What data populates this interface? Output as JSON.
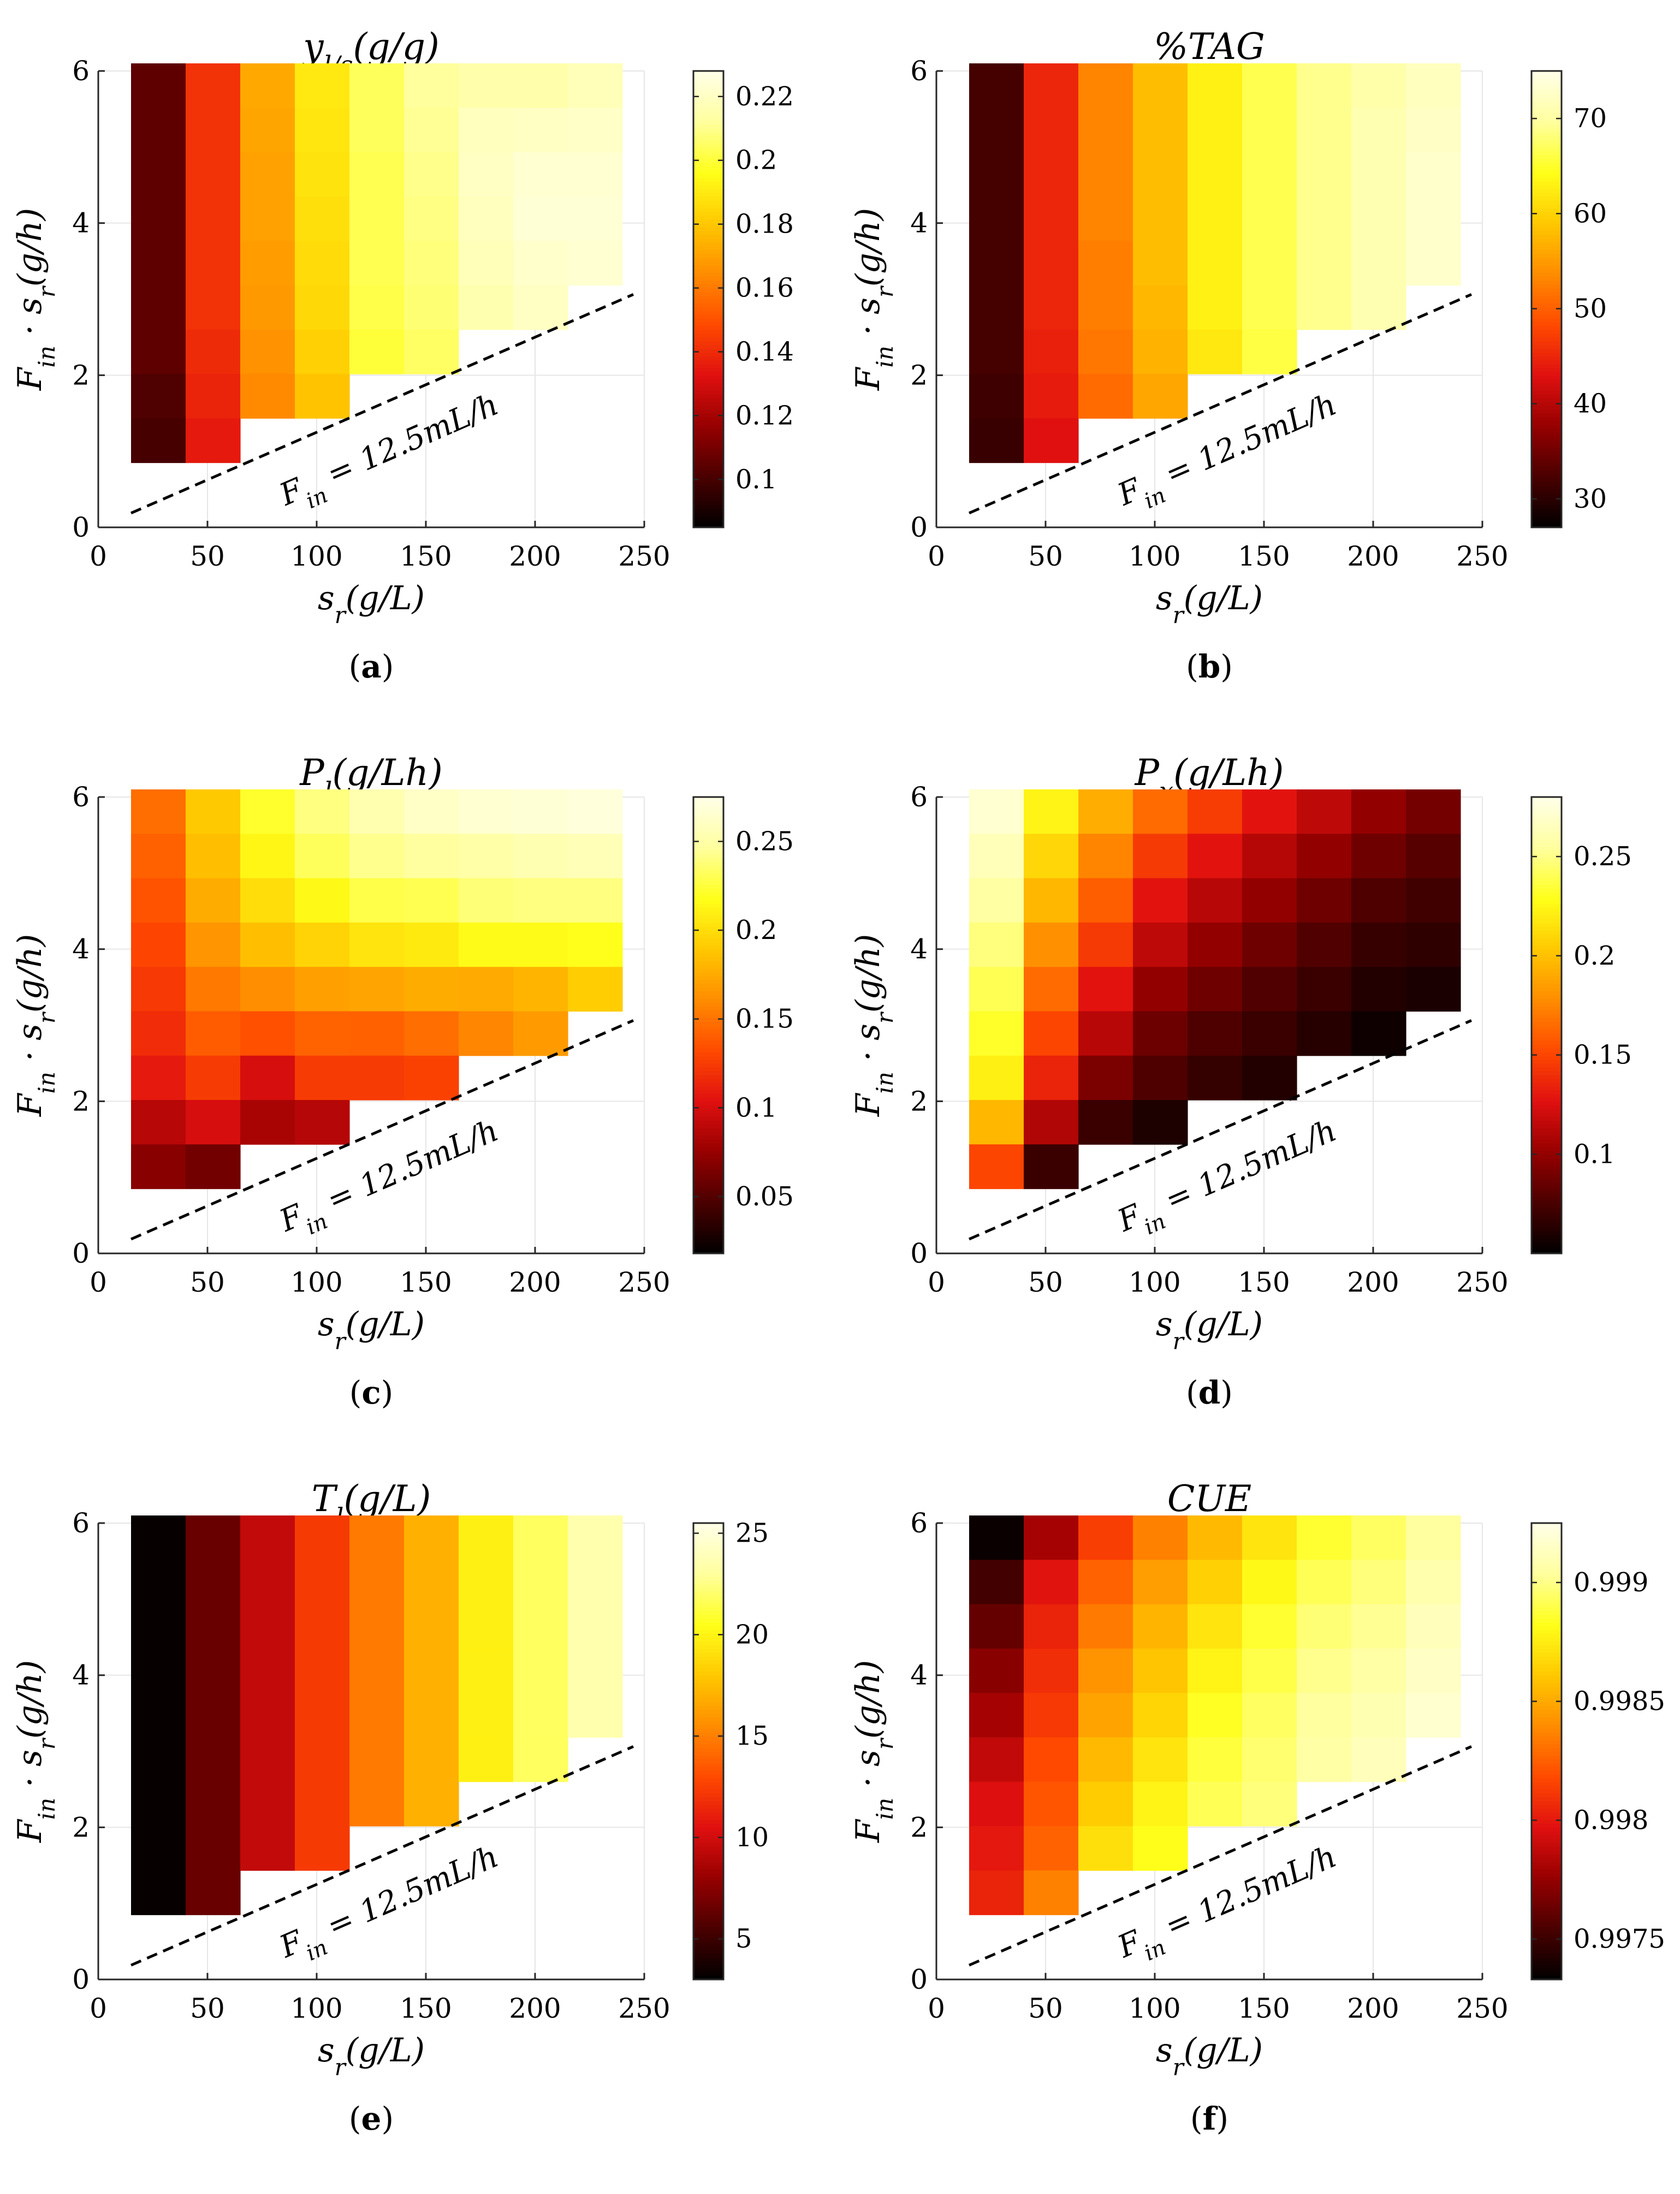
{
  "colors": {
    "colormap": [
      "#000000",
      "#4a0000",
      "#960000",
      "#e01010",
      "#ff4a00",
      "#ff8c00",
      "#ffc800",
      "#ffff1a",
      "#ffff9e",
      "#ffffe8"
    ],
    "dashed_line": "#000000",
    "grid": "#e6e6e6"
  },
  "chart_data": [
    {
      "type": "heatmap",
      "panel": "a",
      "caption": "(a)",
      "caption_letter": "a",
      "title": "y_{l/s}(g/g)",
      "xlabel": "s_r(g/L)",
      "ylabel": "F_in · s_r(g/h)",
      "xlim": [
        0,
        250
      ],
      "ylim": [
        0,
        6
      ],
      "xticks": [
        "0",
        "50",
        "100",
        "150",
        "200",
        "250"
      ],
      "yticks": [
        "0",
        "2",
        "4",
        "6"
      ],
      "annotation": "F_in = 12.5mL/h",
      "colorbar": {
        "min": 0.085,
        "max": 0.228,
        "ticks": [
          0.1,
          0.12,
          0.14,
          0.16,
          0.18,
          0.2,
          0.22
        ],
        "tick_labels": [
          "0.1",
          "0.12",
          "0.14",
          "0.16",
          "0.18",
          "0.2",
          "0.22"
        ]
      },
      "columns": [
        {
          "s_r": 27.5,
          "rows_from_top": [
            0.105,
            0.105,
            0.105,
            0.105,
            0.105,
            0.105,
            0.105,
            0.102,
            0.1
          ]
        },
        {
          "s_r": 52.5,
          "rows_from_top": [
            0.142,
            0.142,
            0.142,
            0.142,
            0.142,
            0.142,
            0.14,
            0.138,
            0.135
          ]
        },
        {
          "s_r": 77.5,
          "rows_from_top": [
            0.172,
            0.171,
            0.17,
            0.17,
            0.169,
            0.168,
            0.166,
            0.164
          ]
        },
        {
          "s_r": 102.5,
          "rows_from_top": [
            0.19,
            0.189,
            0.188,
            0.187,
            0.186,
            0.185,
            0.183,
            0.179
          ]
        },
        {
          "s_r": 127.5,
          "rows_from_top": [
            0.204,
            0.204,
            0.203,
            0.203,
            0.203,
            0.202,
            0.2
          ]
        },
        {
          "s_r": 152.5,
          "rows_from_top": [
            0.212,
            0.211,
            0.21,
            0.209,
            0.208,
            0.207,
            0.205
          ]
        },
        {
          "s_r": 177.5,
          "rows_from_top": [
            0.215,
            0.219,
            0.22,
            0.219,
            0.218,
            0.216
          ]
        },
        {
          "s_r": 202.5,
          "rows_from_top": [
            0.215,
            0.22,
            0.223,
            0.224,
            0.222,
            0.22
          ]
        },
        {
          "s_r": 227.5,
          "rows_from_top": [
            0.218,
            0.221,
            0.223,
            0.224,
            0.223
          ]
        }
      ]
    },
    {
      "type": "heatmap",
      "panel": "b",
      "caption": "(b)",
      "caption_letter": "b",
      "title": "%TAG",
      "xlabel": "s_r(g/L)",
      "ylabel": "F_in · s_r(g/h)",
      "xlim": [
        0,
        250
      ],
      "ylim": [
        0,
        6
      ],
      "xticks": [
        "0",
        "50",
        "100",
        "150",
        "200",
        "250"
      ],
      "yticks": [
        "0",
        "2",
        "4",
        "6"
      ],
      "annotation": "F_in = 12.5mL/h",
      "colorbar": {
        "min": 27,
        "max": 75,
        "ticks": [
          30,
          40,
          50,
          60,
          70
        ],
        "tick_labels": [
          "30",
          "40",
          "50",
          "60",
          "70"
        ]
      },
      "columns": [
        {
          "s_r": 27.5,
          "rows_from_top": [
            32,
            32,
            32,
            32,
            32,
            32,
            32,
            31.5,
            31
          ]
        },
        {
          "s_r": 52.5,
          "rows_from_top": [
            45,
            45,
            45,
            45,
            45,
            45,
            44.5,
            44,
            43
          ]
        },
        {
          "s_r": 77.5,
          "rows_from_top": [
            53,
            53,
            53,
            53,
            52.5,
            52.5,
            52,
            51
          ]
        },
        {
          "s_r": 102.5,
          "rows_from_top": [
            58,
            58,
            58,
            58,
            58,
            57.5,
            57,
            56
          ]
        },
        {
          "s_r": 127.5,
          "rows_from_top": [
            63,
            63,
            63,
            63,
            63,
            63,
            62
          ]
        },
        {
          "s_r": 152.5,
          "rows_from_top": [
            66.5,
            66.5,
            66.5,
            66.5,
            66.5,
            66.5,
            66
          ]
        },
        {
          "s_r": 177.5,
          "rows_from_top": [
            69,
            69,
            69,
            69,
            69,
            69
          ]
        },
        {
          "s_r": 202.5,
          "rows_from_top": [
            70.5,
            71,
            71,
            71,
            71,
            71
          ]
        },
        {
          "s_r": 227.5,
          "rows_from_top": [
            72,
            72.5,
            73,
            73,
            73
          ]
        }
      ]
    },
    {
      "type": "heatmap",
      "panel": "c",
      "caption": "(c)",
      "caption_letter": "c",
      "title": "P_l(g/Lh)",
      "xlabel": "s_r(g/L)",
      "ylabel": "F_in · s_r(g/h)",
      "xlim": [
        0,
        250
      ],
      "ylim": [
        0,
        6
      ],
      "xticks": [
        "0",
        "50",
        "100",
        "150",
        "200",
        "250"
      ],
      "yticks": [
        "0",
        "2",
        "4",
        "6"
      ],
      "annotation": "F_in = 12.5mL/h",
      "colorbar": {
        "min": 0.018,
        "max": 0.275,
        "ticks": [
          0.05,
          0.1,
          0.15,
          0.2,
          0.25
        ],
        "tick_labels": [
          "0.05",
          "0.1",
          "0.15",
          "0.2",
          "0.25"
        ]
      },
      "columns": [
        {
          "s_r": 27.5,
          "rows_from_top": [
            0.148,
            0.142,
            0.136,
            0.13,
            0.124,
            0.118,
            0.108,
            0.088,
            0.07
          ]
        },
        {
          "s_r": 52.5,
          "rows_from_top": [
            0.19,
            0.185,
            0.176,
            0.165,
            0.152,
            0.14,
            0.125,
            0.1,
            0.062
          ]
        },
        {
          "s_r": 77.5,
          "rows_from_top": [
            0.222,
            0.213,
            0.2,
            0.185,
            0.162,
            0.135,
            0.1,
            0.082
          ]
        },
        {
          "s_r": 102.5,
          "rows_from_top": [
            0.24,
            0.232,
            0.215,
            0.195,
            0.17,
            0.143,
            0.125,
            0.087
          ]
        },
        {
          "s_r": 127.5,
          "rows_from_top": [
            0.253,
            0.243,
            0.228,
            0.204,
            0.172,
            0.142,
            0.125
          ]
        },
        {
          "s_r": 152.5,
          "rows_from_top": [
            0.262,
            0.247,
            0.23,
            0.207,
            0.176,
            0.148,
            0.128
          ]
        },
        {
          "s_r": 177.5,
          "rows_from_top": [
            0.266,
            0.25,
            0.238,
            0.216,
            0.175,
            0.158
          ]
        },
        {
          "s_r": 202.5,
          "rows_from_top": [
            0.268,
            0.254,
            0.24,
            0.216,
            0.18,
            0.168
          ]
        },
        {
          "s_r": 227.5,
          "rows_from_top": [
            0.27,
            0.256,
            0.24,
            0.218,
            0.192
          ]
        }
      ]
    },
    {
      "type": "heatmap",
      "panel": "d",
      "caption": "(d)",
      "caption_letter": "d",
      "title": "P_x(g/Lh)",
      "xlabel": "s_r(g/L)",
      "ylabel": "F_in · s_r(g/h)",
      "xlim": [
        0,
        250
      ],
      "ylim": [
        0,
        6
      ],
      "xticks": [
        "0",
        "50",
        "100",
        "150",
        "200",
        "250"
      ],
      "yticks": [
        "0",
        "2",
        "4",
        "6"
      ],
      "annotation": "F_in = 12.5mL/h",
      "colorbar": {
        "min": 0.05,
        "max": 0.28,
        "ticks": [
          0.1,
          0.15,
          0.2,
          0.25
        ],
        "tick_labels": [
          "0.1",
          "0.15",
          "0.2",
          "0.25"
        ]
      },
      "columns": [
        {
          "s_r": 27.5,
          "rows_from_top": [
            0.272,
            0.264,
            0.256,
            0.248,
            0.24,
            0.232,
            0.222,
            0.196,
            0.15
          ]
        },
        {
          "s_r": 52.5,
          "rows_from_top": [
            0.224,
            0.21,
            0.196,
            0.18,
            0.165,
            0.15,
            0.135,
            0.11,
            0.07
          ]
        },
        {
          "s_r": 77.5,
          "rows_from_top": [
            0.192,
            0.175,
            0.16,
            0.145,
            0.128,
            0.113,
            0.092,
            0.07
          ]
        },
        {
          "s_r": 102.5,
          "rows_from_top": [
            0.165,
            0.145,
            0.128,
            0.115,
            0.1,
            0.087,
            0.077,
            0.06
          ]
        },
        {
          "s_r": 127.5,
          "rows_from_top": [
            0.146,
            0.128,
            0.113,
            0.1,
            0.088,
            0.077,
            0.068
          ]
        },
        {
          "s_r": 152.5,
          "rows_from_top": [
            0.128,
            0.112,
            0.1,
            0.088,
            0.078,
            0.07,
            0.062
          ]
        },
        {
          "s_r": 177.5,
          "rows_from_top": [
            0.115,
            0.1,
            0.088,
            0.078,
            0.07,
            0.063
          ]
        },
        {
          "s_r": 202.5,
          "rows_from_top": [
            0.1,
            0.088,
            0.077,
            0.069,
            0.062,
            0.055
          ]
        },
        {
          "s_r": 227.5,
          "rows_from_top": [
            0.09,
            0.08,
            0.072,
            0.066,
            0.059
          ]
        }
      ]
    },
    {
      "type": "heatmap",
      "panel": "e",
      "caption": "(e)",
      "caption_letter": "e",
      "title": "T_l(g/L)",
      "xlabel": "s_r(g/L)",
      "ylabel": "F_in · s_r(g/h)",
      "xlim": [
        0,
        250
      ],
      "ylim": [
        0,
        6
      ],
      "xticks": [
        "0",
        "50",
        "100",
        "150",
        "200",
        "250"
      ],
      "yticks": [
        "0",
        "2",
        "4",
        "6"
      ],
      "annotation": "F_in = 12.5mL/h",
      "colorbar": {
        "min": 3,
        "max": 25.5,
        "ticks": [
          5,
          10,
          15,
          20,
          25
        ],
        "tick_labels": [
          "5",
          "10",
          "15",
          "20",
          "25"
        ]
      },
      "columns": [
        {
          "s_r": 27.5,
          "rows_from_top": [
            3.2,
            3.2,
            3.2,
            3.2,
            3.2,
            3.2,
            3.2,
            3.2,
            3.2
          ]
        },
        {
          "s_r": 52.5,
          "rows_from_top": [
            6.5,
            6.5,
            6.5,
            6.5,
            6.5,
            6.5,
            6.5,
            6.5,
            6.5
          ]
        },
        {
          "s_r": 77.5,
          "rows_from_top": [
            9.5,
            9.5,
            9.5,
            9.5,
            9.5,
            9.5,
            9.5,
            9.5
          ]
        },
        {
          "s_r": 102.5,
          "rows_from_top": [
            12.3,
            12.3,
            12.3,
            12.3,
            12.3,
            12.3,
            12.3,
            12.3
          ]
        },
        {
          "s_r": 127.5,
          "rows_from_top": [
            14.8,
            14.8,
            14.8,
            14.8,
            14.8,
            14.8,
            14.8
          ]
        },
        {
          "s_r": 152.5,
          "rows_from_top": [
            17,
            17,
            17,
            17,
            17,
            17,
            17
          ]
        },
        {
          "s_r": 177.5,
          "rows_from_top": [
            19.8,
            19.8,
            19.8,
            19.8,
            19.8,
            19.8
          ]
        },
        {
          "s_r": 202.5,
          "rows_from_top": [
            21.8,
            21.8,
            21.8,
            21.8,
            21.8,
            21.8
          ]
        },
        {
          "s_r": 227.5,
          "rows_from_top": [
            23.5,
            23.5,
            23.5,
            23.5,
            23.5
          ]
        }
      ]
    },
    {
      "type": "heatmap",
      "panel": "f",
      "caption": "(f)",
      "caption_letter": "f",
      "title": "CUE",
      "xlabel": "s_r(g/L)",
      "ylabel": "F_in · s_r(g/h)",
      "xlim": [
        0,
        250
      ],
      "ylim": [
        0,
        6
      ],
      "xticks": [
        "0",
        "50",
        "100",
        "150",
        "200",
        "250"
      ],
      "yticks": [
        "0",
        "2",
        "4",
        "6"
      ],
      "annotation": "F_in = 12.5mL/h",
      "colorbar": {
        "min": 0.99733,
        "max": 0.99925,
        "ticks": [
          0.9975,
          0.998,
          0.9985,
          0.999
        ],
        "tick_labels": [
          "0.9975",
          "0.998",
          "0.9985",
          "0.999"
        ]
      },
      "columns": [
        {
          "s_r": 27.5,
          "rows_from_top": [
            0.99736,
            0.99752,
            0.99762,
            0.99772,
            0.9978,
            0.99788,
            0.99796,
            0.998,
            0.99804
          ]
        },
        {
          "s_r": 52.5,
          "rows_from_top": [
            0.9978,
            0.99798,
            0.99804,
            0.99808,
            0.99812,
            0.99818,
            0.99822,
            0.99826,
            0.99836
          ]
        },
        {
          "s_r": 77.5,
          "rows_from_top": [
            0.99814,
            0.99826,
            0.99834,
            0.99842,
            0.99848,
            0.99856,
            0.99862,
            0.9987
          ]
        },
        {
          "s_r": 102.5,
          "rows_from_top": [
            0.99836,
            0.99846,
            0.99854,
            0.9986,
            0.99866,
            0.99872,
            0.99878,
            0.99882
          ]
        },
        {
          "s_r": 127.5,
          "rows_from_top": [
            0.99856,
            0.99864,
            0.99872,
            0.99878,
            0.99884,
            0.99888,
            0.99892
          ]
        },
        {
          "s_r": 152.5,
          "rows_from_top": [
            0.99872,
            0.9988,
            0.99886,
            0.9989,
            0.99894,
            0.99896,
            0.99898
          ]
        },
        {
          "s_r": 177.5,
          "rows_from_top": [
            0.99886,
            0.99892,
            0.99897,
            0.99901,
            0.99904,
            0.99906
          ]
        },
        {
          "s_r": 202.5,
          "rows_from_top": [
            0.99894,
            0.99898,
            0.99902,
            0.99906,
            0.99909,
            0.99912
          ]
        },
        {
          "s_r": 227.5,
          "rows_from_top": [
            0.99904,
            0.99908,
            0.99912,
            0.99915,
            0.99918
          ]
        }
      ]
    }
  ]
}
